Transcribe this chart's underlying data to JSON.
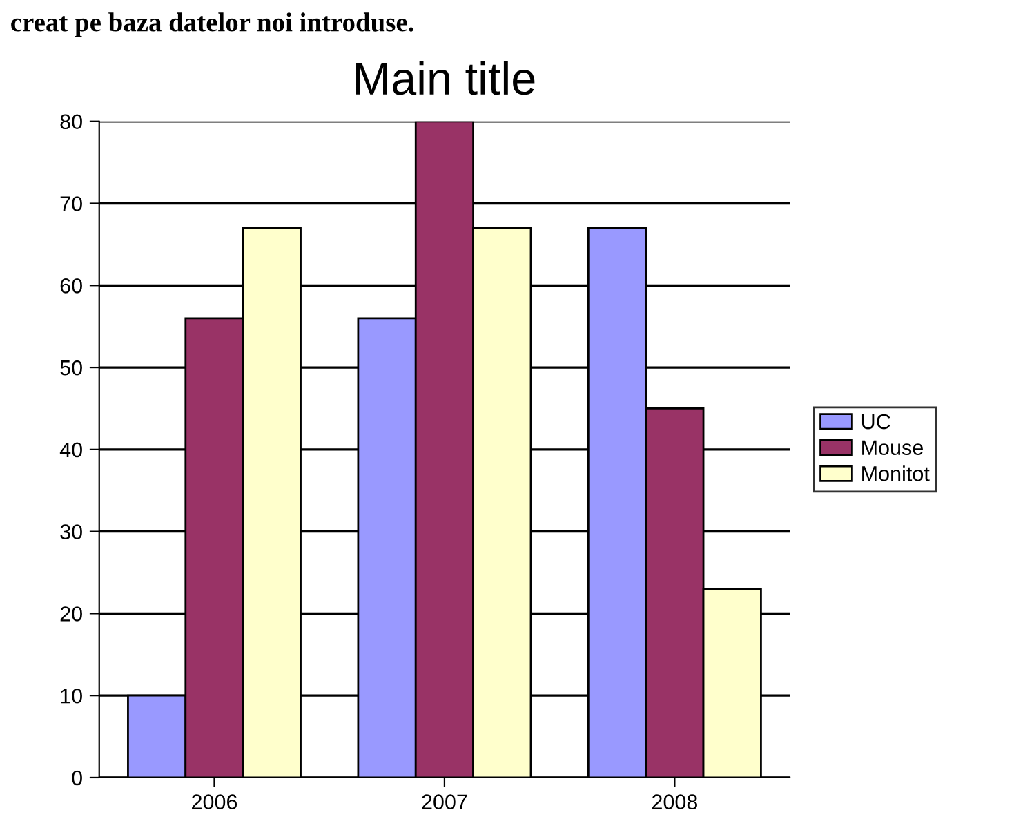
{
  "chart_data": {
    "type": "bar",
    "title": "Main title",
    "annotations": [
      "creat pe baza datelor noi introduse."
    ],
    "categories": [
      "2006",
      "2007",
      "2008"
    ],
    "series": [
      {
        "name": "UC",
        "color": "#9999ff",
        "values": [
          10,
          56,
          67
        ]
      },
      {
        "name": "Mouse",
        "color": "#993366",
        "values": [
          56,
          80,
          45
        ]
      },
      {
        "name": "Monitot",
        "color": "#ffffcc",
        "values": [
          67,
          67,
          23
        ]
      }
    ],
    "ylim": [
      0,
      80
    ],
    "yticks": [
      0,
      10,
      20,
      30,
      40,
      50,
      60,
      70,
      80
    ],
    "grid": "y",
    "legend": "right"
  }
}
